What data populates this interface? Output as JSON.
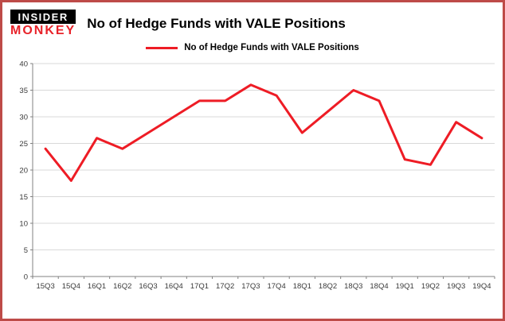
{
  "header": {
    "logo_line1": "INSIDER",
    "logo_line2": "MONKEY",
    "title": "No of Hedge Funds with VALE Positions"
  },
  "legend": {
    "label": "No of Hedge Funds with VALE Positions"
  },
  "chart_data": {
    "type": "line",
    "title": "No of Hedge Funds with VALE Positions",
    "categories": [
      "15Q3",
      "15Q4",
      "16Q1",
      "16Q2",
      "16Q3",
      "16Q4",
      "17Q1",
      "17Q2",
      "17Q3",
      "17Q4",
      "18Q1",
      "18Q2",
      "18Q3",
      "18Q4",
      "19Q1",
      "19Q2",
      "19Q3",
      "19Q4"
    ],
    "values": [
      24,
      18,
      26,
      24,
      27,
      30,
      33,
      33,
      36,
      34,
      27,
      31,
      35,
      33,
      22,
      21,
      29,
      26
    ],
    "xlabel": "",
    "ylabel": "",
    "ylim": [
      0,
      40
    ],
    "ytick_step": 5,
    "grid": true,
    "legend_position": "top",
    "line_color": "#ee1c25"
  },
  "colors": {
    "frame_border": "#be4b48",
    "gridline": "#d9d9d9",
    "axis": "#808080",
    "line": "#ee1c25",
    "logo_red": "#e8232a"
  }
}
